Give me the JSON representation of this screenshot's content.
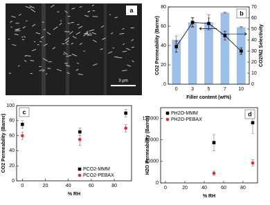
{
  "sem_image": {
    "label": "a",
    "scale_bar": "3 μm"
  },
  "chart_data": [
    {
      "type": "bar",
      "panel_label": "b",
      "x_label": "Filler content (wt%)",
      "y_label": "CO2 Permeability (Barrer)",
      "y2_label": "CO2/N2 Selectivity",
      "categories": [
        "0",
        "3",
        "5",
        "7",
        "10"
      ],
      "series": [
        {
          "type": "bar",
          "color": "#9dbfe8",
          "values": [
            46,
            64,
            64,
            74,
            59
          ],
          "errors": [
            4,
            5,
            8,
            0.5,
            0.5
          ]
        },
        {
          "type": "line",
          "axis": "y2",
          "color": "#000000",
          "values": [
            34,
            56,
            55,
            44,
            30
          ],
          "errors": [
            5,
            4,
            5,
            4,
            3
          ]
        }
      ],
      "ylim": [
        0,
        80
      ],
      "yticks": [
        0,
        20,
        40,
        60,
        80
      ],
      "y2lim": [
        0,
        70
      ],
      "y2ticks": [
        0,
        10,
        20,
        30,
        40,
        50,
        60,
        70
      ]
    },
    {
      "type": "scatter",
      "panel_label": "c",
      "x_label": "% RH",
      "y_label": "CO2 Permeability (Barrer)",
      "x": [
        0,
        50,
        90
      ],
      "series": [
        {
          "name": "PCO2-MMM",
          "marker": "square",
          "color": "#000000",
          "values": [
            75,
            65,
            90
          ],
          "errors": [
            5,
            5,
            5
          ]
        },
        {
          "name": "PCO2-PEBAX",
          "marker": "circle",
          "color": "#e8262a",
          "values": [
            60,
            55,
            70
          ],
          "errors": [
            5,
            8,
            5
          ]
        }
      ],
      "xlim": [
        -5,
        95
      ],
      "xticks": [
        0,
        20,
        40,
        60,
        80
      ],
      "ylim": [
        0,
        100
      ],
      "yticks": [
        0,
        20,
        40,
        60,
        80,
        100
      ],
      "legend": "lower right"
    },
    {
      "type": "scatter",
      "panel_label": "d",
      "x_label": "% RH",
      "y_label": "H2O Permeability (Barrer)",
      "x": [
        50,
        90
      ],
      "series": [
        {
          "name": "PH2O-MMM",
          "marker": "square",
          "color": "#000000",
          "values": [
            75000,
            112000
          ],
          "errors": [
            15000,
            20000
          ]
        },
        {
          "name": "PH2O-PEBAX",
          "marker": "circle",
          "color": "#e8262a",
          "values": [
            18000,
            37000
          ],
          "errors": [
            4000,
            6000
          ]
        }
      ],
      "xlim": [
        -5,
        95
      ],
      "xticks": [
        0,
        20,
        40,
        60,
        80
      ],
      "ylim": [
        0,
        140000
      ],
      "yticks": [
        0,
        40000,
        80000,
        120000
      ],
      "legend": "upper left"
    }
  ]
}
